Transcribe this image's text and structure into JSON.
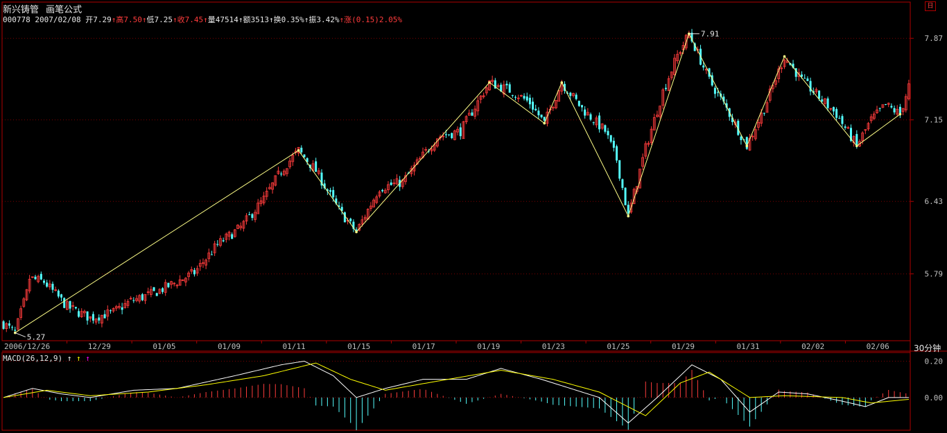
{
  "header": {
    "stock_name": "新兴铸管",
    "formula_label": "画笔公式",
    "code": "000778",
    "date": "2007/02/08",
    "open_label": "开7.29",
    "high_label": "高7.50",
    "low_label": "低7.25",
    "close_label": "收7.45",
    "volume_label": "量47514",
    "amount_label": "额3513",
    "turnover_label": "换0.35%",
    "amplitude_label": "振3.42%",
    "change_label": "涨(0.15)2.05%",
    "arrow": "↑"
  },
  "period_label": "30分钟",
  "macd_label": "MACD(26,12,9)",
  "macd_arrows": [
    "↑",
    "↑",
    "↑"
  ],
  "colors": {
    "up": "#ff3c3c",
    "down": "#54ffff",
    "zigzag": "#ffff88",
    "grid": "#800000",
    "frame": "#b00000"
  },
  "chart_data": [
    {
      "type": "candlestick",
      "title": "",
      "x_ticks": [
        "2006/12/26",
        "12/29",
        "01/05",
        "01/09",
        "01/11",
        "01/15",
        "01/17",
        "01/19",
        "01/23",
        "01/25",
        "01/29",
        "01/31",
        "02/02",
        "02/06"
      ],
      "y_ticks": [
        7.87,
        7.15,
        6.43,
        5.79
      ],
      "ylim": [
        5.2,
        8.0
      ],
      "zigzag": [
        {
          "bar": 4,
          "price": 5.27
        },
        {
          "bar": 102,
          "price": 6.88
        },
        {
          "bar": 122,
          "price": 6.16
        },
        {
          "bar": 168,
          "price": 7.48
        },
        {
          "bar": 187,
          "price": 7.12
        },
        {
          "bar": 193,
          "price": 7.48
        },
        {
          "bar": 216,
          "price": 6.3
        },
        {
          "bar": 237,
          "price": 7.91
        },
        {
          "bar": 257,
          "price": 6.92
        },
        {
          "bar": 270,
          "price": 7.71
        },
        {
          "bar": 295,
          "price": 6.92
        },
        {
          "bar": 310,
          "price": 7.2
        }
      ],
      "annotations": [
        {
          "text": "5.27",
          "bar": 4,
          "price": 5.27
        },
        {
          "text": "7.91",
          "bar": 237,
          "price": 7.91
        }
      ],
      "anchors": [
        [
          0,
          5.35
        ],
        [
          4,
          5.27
        ],
        [
          8,
          5.62
        ],
        [
          9,
          5.75
        ],
        [
          14,
          5.72
        ],
        [
          22,
          5.5
        ],
        [
          30,
          5.4
        ],
        [
          38,
          5.45
        ],
        [
          44,
          5.55
        ],
        [
          52,
          5.62
        ],
        [
          60,
          5.72
        ],
        [
          66,
          5.8
        ],
        [
          74,
          6.05
        ],
        [
          82,
          6.2
        ],
        [
          90,
          6.45
        ],
        [
          96,
          6.7
        ],
        [
          102,
          6.88
        ],
        [
          108,
          6.7
        ],
        [
          116,
          6.35
        ],
        [
          122,
          6.16
        ],
        [
          130,
          6.55
        ],
        [
          138,
          6.6
        ],
        [
          144,
          6.8
        ],
        [
          150,
          7.0
        ],
        [
          158,
          7.05
        ],
        [
          168,
          7.48
        ],
        [
          176,
          7.4
        ],
        [
          182,
          7.3
        ],
        [
          187,
          7.12
        ],
        [
          193,
          7.48
        ],
        [
          200,
          7.25
        ],
        [
          208,
          7.05
        ],
        [
          212,
          6.8
        ],
        [
          216,
          6.3
        ],
        [
          222,
          6.9
        ],
        [
          228,
          7.4
        ],
        [
          233,
          7.72
        ],
        [
          237,
          7.91
        ],
        [
          244,
          7.5
        ],
        [
          250,
          7.25
        ],
        [
          257,
          6.92
        ],
        [
          263,
          7.25
        ],
        [
          270,
          7.71
        ],
        [
          276,
          7.5
        ],
        [
          282,
          7.35
        ],
        [
          288,
          7.2
        ],
        [
          295,
          6.92
        ],
        [
          300,
          7.15
        ],
        [
          305,
          7.28
        ],
        [
          310,
          7.2
        ],
        [
          313,
          7.45
        ]
      ],
      "bars_count": 314
    },
    {
      "type": "macd",
      "params": "MACD(26,12,9)",
      "y_ticks": [
        0.2,
        0.0
      ],
      "ylim": [
        -0.18,
        0.24
      ],
      "dif_anchors": [
        [
          0,
          0.0
        ],
        [
          10,
          0.05
        ],
        [
          20,
          0.02
        ],
        [
          30,
          0.0
        ],
        [
          45,
          0.04
        ],
        [
          60,
          0.05
        ],
        [
          80,
          0.12
        ],
        [
          96,
          0.18
        ],
        [
          104,
          0.2
        ],
        [
          114,
          0.12
        ],
        [
          122,
          0.0
        ],
        [
          132,
          0.05
        ],
        [
          145,
          0.1
        ],
        [
          160,
          0.1
        ],
        [
          172,
          0.16
        ],
        [
          186,
          0.1
        ],
        [
          196,
          0.05
        ],
        [
          206,
          0.0
        ],
        [
          216,
          -0.14
        ],
        [
          226,
          0.0
        ],
        [
          238,
          0.18
        ],
        [
          248,
          0.1
        ],
        [
          258,
          -0.08
        ],
        [
          268,
          0.03
        ],
        [
          278,
          0.02
        ],
        [
          290,
          -0.02
        ],
        [
          298,
          -0.05
        ],
        [
          306,
          0.0
        ],
        [
          313,
          0.0
        ]
      ],
      "dea_anchors": [
        [
          0,
          0.0
        ],
        [
          15,
          0.04
        ],
        [
          30,
          0.01
        ],
        [
          50,
          0.03
        ],
        [
          70,
          0.07
        ],
        [
          90,
          0.12
        ],
        [
          108,
          0.19
        ],
        [
          120,
          0.1
        ],
        [
          132,
          0.04
        ],
        [
          150,
          0.09
        ],
        [
          172,
          0.15
        ],
        [
          190,
          0.1
        ],
        [
          206,
          0.03
        ],
        [
          222,
          -0.1
        ],
        [
          234,
          0.08
        ],
        [
          244,
          0.14
        ],
        [
          258,
          0.0
        ],
        [
          270,
          0.01
        ],
        [
          290,
          0.0
        ],
        [
          300,
          -0.03
        ],
        [
          313,
          -0.01
        ]
      ]
    }
  ]
}
